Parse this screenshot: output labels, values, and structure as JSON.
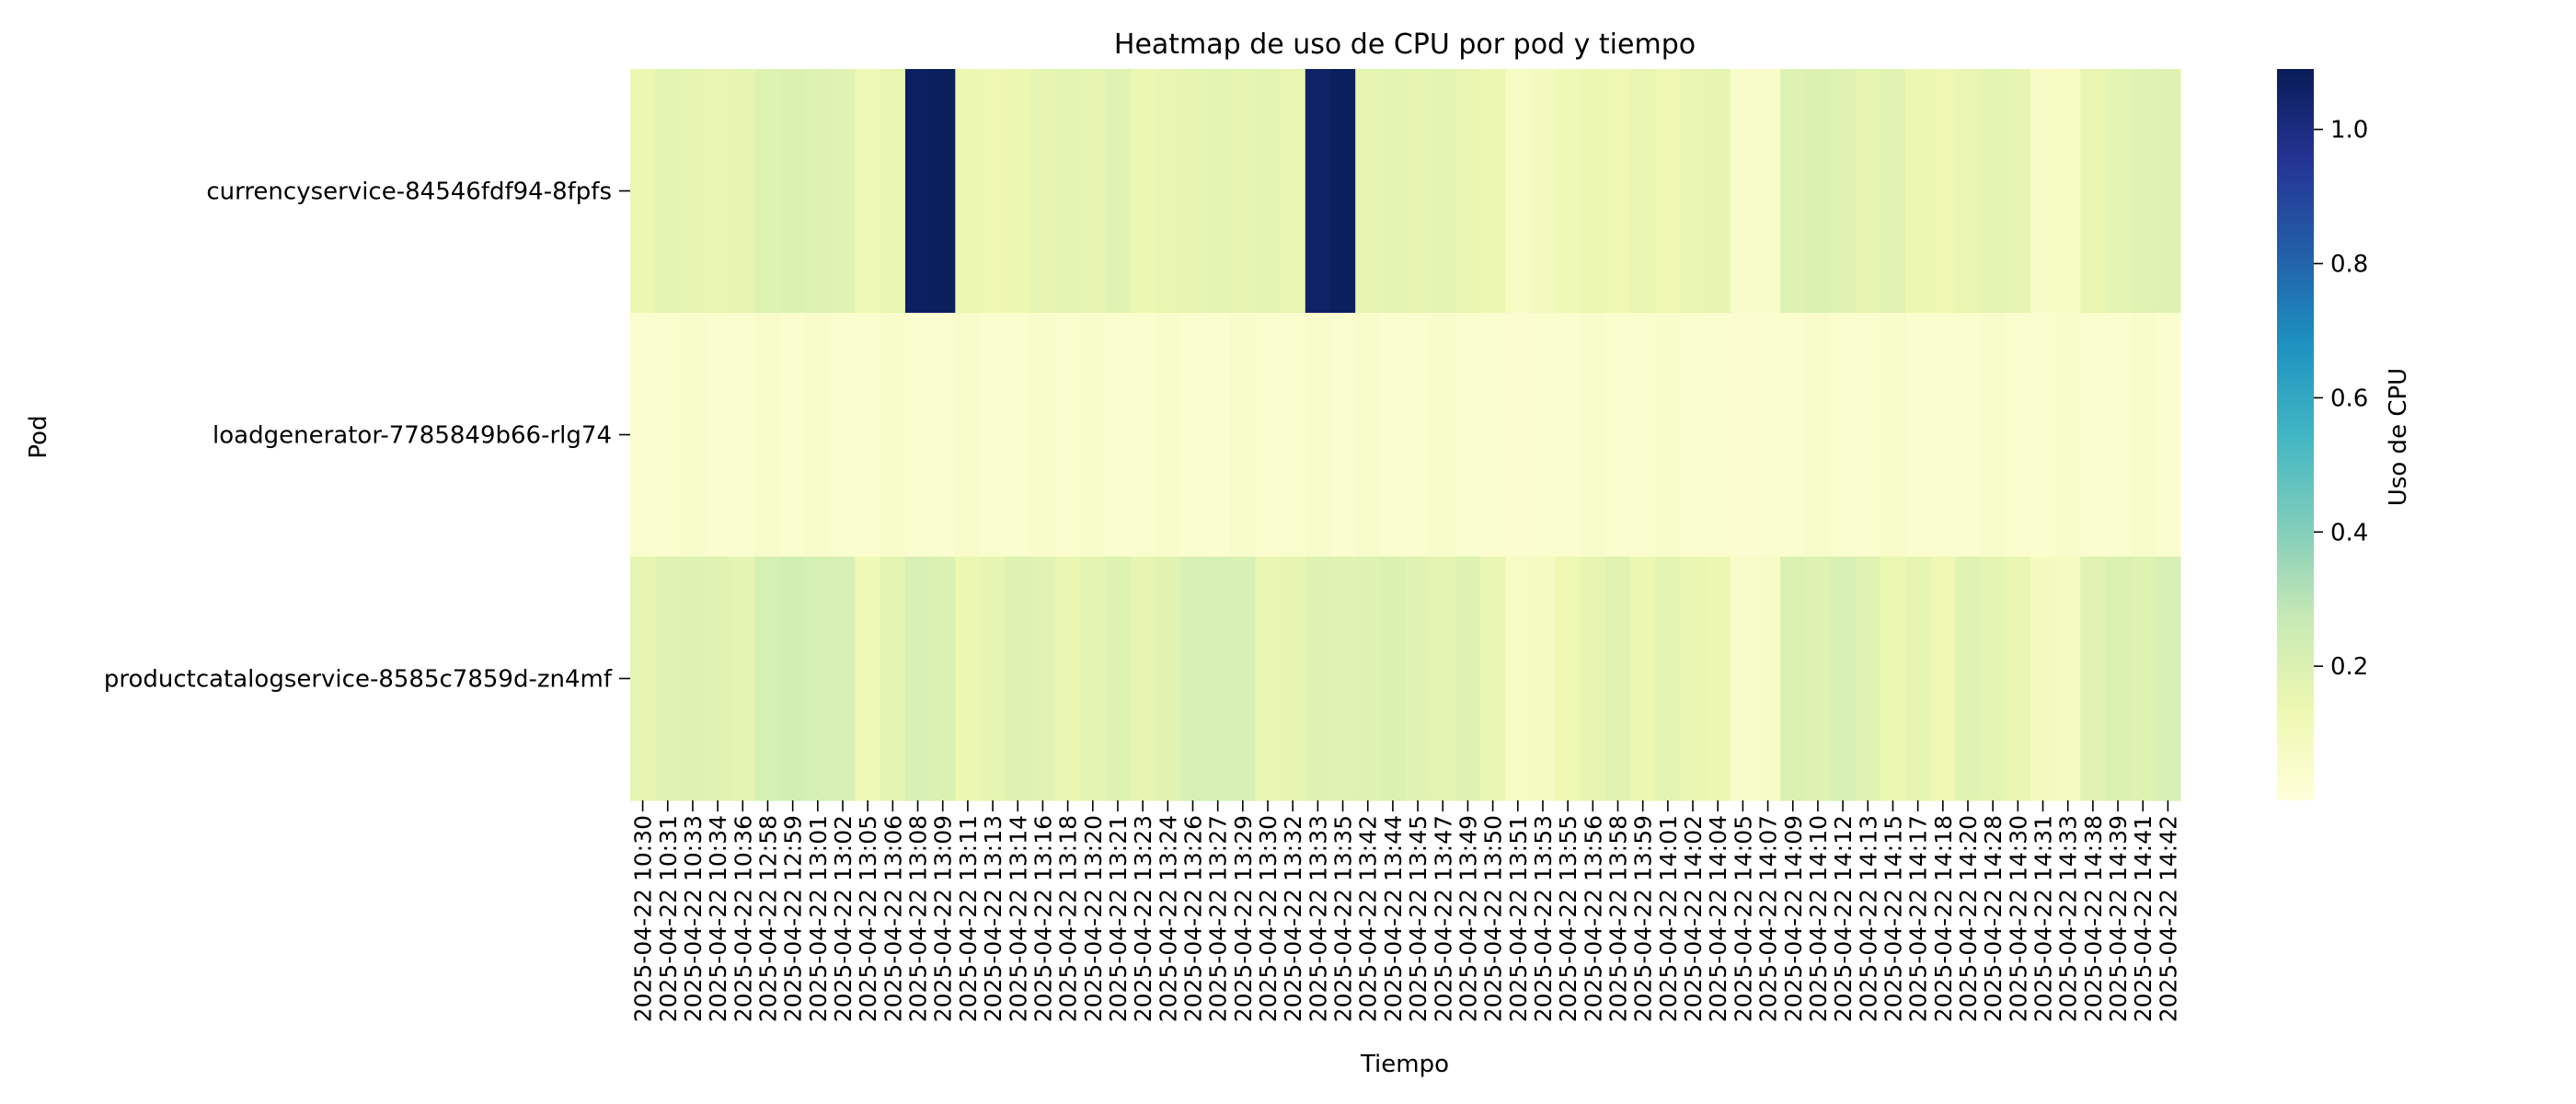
{
  "chart_data": {
    "type": "heatmap",
    "title": "Heatmap de uso de CPU por pod y tiempo",
    "xlabel": "Tiempo",
    "ylabel": "Pod",
    "colorbar_label": "Uso de CPU",
    "colormap": "YlGnBu",
    "value_range": [
      0.0,
      1.09
    ],
    "colorbar_ticks": [
      "0.2",
      "0.4",
      "0.6",
      "0.8",
      "1.0"
    ],
    "colors": {
      "low": "#ffffd9",
      "mid": "#7fcdbb",
      "high": "#081d58"
    },
    "pods": [
      "currencyservice-84546fdf94-8fpfs",
      "loadgenerator-7785849b66-rlg74",
      "productcatalogservice-8585c7859d-zn4mf"
    ],
    "x_tick_labels": [
      "2025-04-22 10:30",
      "2025-04-22 10:31",
      "2025-04-22 10:33",
      "2025-04-22 10:34",
      "2025-04-22 10:36",
      "2025-04-22 12:58",
      "2025-04-22 12:59",
      "2025-04-22 13:01",
      "2025-04-22 13:02",
      "2025-04-22 13:05",
      "2025-04-22 13:06",
      "2025-04-22 13:08",
      "2025-04-22 13:09",
      "2025-04-22 13:11",
      "2025-04-22 13:13",
      "2025-04-22 13:14",
      "2025-04-22 13:16",
      "2025-04-22 13:18",
      "2025-04-22 13:20",
      "2025-04-22 13:21",
      "2025-04-22 13:23",
      "2025-04-22 13:24",
      "2025-04-22 13:26",
      "2025-04-22 13:27",
      "2025-04-22 13:29",
      "2025-04-22 13:30",
      "2025-04-22 13:32",
      "2025-04-22 13:33",
      "2025-04-22 13:35",
      "2025-04-22 13:42",
      "2025-04-22 13:44",
      "2025-04-22 13:45",
      "2025-04-22 13:47",
      "2025-04-22 13:49",
      "2025-04-22 13:50",
      "2025-04-22 13:51",
      "2025-04-22 13:53",
      "2025-04-22 13:55",
      "2025-04-22 13:56",
      "2025-04-22 13:58",
      "2025-04-22 13:59",
      "2025-04-22 14:01",
      "2025-04-22 14:02",
      "2025-04-22 14:04",
      "2025-04-22 14:05",
      "2025-04-22 14:07",
      "2025-04-22 14:09",
      "2025-04-22 14:10",
      "2025-04-22 14:12",
      "2025-04-22 14:13",
      "2025-04-22 14:15",
      "2025-04-22 14:17",
      "2025-04-22 14:18",
      "2025-04-22 14:20",
      "2025-04-22 14:28",
      "2025-04-22 14:30",
      "2025-04-22 14:31",
      "2025-04-22 14:33",
      "2025-04-22 14:38",
      "2025-04-22 14:39",
      "2025-04-22 14:41",
      "2025-04-22 14:42"
    ],
    "values": [
      [
        0.14,
        0.17,
        0.16,
        0.15,
        0.16,
        0.19,
        0.2,
        0.19,
        0.18,
        0.12,
        0.15,
        1.07,
        1.08,
        0.14,
        0.13,
        0.14,
        0.16,
        0.17,
        0.16,
        0.18,
        0.14,
        0.15,
        0.16,
        0.17,
        0.16,
        0.17,
        0.15,
        1.06,
        1.08,
        0.16,
        0.17,
        0.16,
        0.17,
        0.15,
        0.14,
        0.07,
        0.09,
        0.12,
        0.14,
        0.13,
        0.15,
        0.13,
        0.15,
        0.16,
        0.05,
        0.05,
        0.19,
        0.2,
        0.19,
        0.16,
        0.18,
        0.14,
        0.13,
        0.15,
        0.17,
        0.16,
        0.06,
        0.07,
        0.15,
        0.17,
        0.18,
        0.19
      ],
      [
        0.04,
        0.04,
        0.05,
        0.04,
        0.04,
        0.05,
        0.04,
        0.05,
        0.04,
        0.04,
        0.05,
        0.04,
        0.04,
        0.05,
        0.04,
        0.04,
        0.05,
        0.04,
        0.05,
        0.04,
        0.04,
        0.05,
        0.04,
        0.04,
        0.05,
        0.04,
        0.04,
        0.05,
        0.04,
        0.05,
        0.04,
        0.04,
        0.05,
        0.04,
        0.04,
        0.03,
        0.04,
        0.04,
        0.05,
        0.04,
        0.04,
        0.05,
        0.04,
        0.04,
        0.03,
        0.04,
        0.04,
        0.05,
        0.04,
        0.04,
        0.05,
        0.04,
        0.04,
        0.04,
        0.05,
        0.04,
        0.04,
        0.05,
        0.04,
        0.04,
        0.05,
        0.04
      ],
      [
        0.16,
        0.18,
        0.19,
        0.18,
        0.17,
        0.22,
        0.23,
        0.22,
        0.21,
        0.12,
        0.17,
        0.21,
        0.2,
        0.14,
        0.16,
        0.19,
        0.18,
        0.15,
        0.17,
        0.19,
        0.16,
        0.18,
        0.21,
        0.22,
        0.21,
        0.15,
        0.16,
        0.19,
        0.18,
        0.19,
        0.2,
        0.18,
        0.17,
        0.19,
        0.15,
        0.07,
        0.08,
        0.13,
        0.16,
        0.18,
        0.14,
        0.17,
        0.15,
        0.14,
        0.05,
        0.06,
        0.2,
        0.19,
        0.21,
        0.18,
        0.14,
        0.16,
        0.13,
        0.18,
        0.17,
        0.15,
        0.09,
        0.08,
        0.18,
        0.2,
        0.19,
        0.21
      ]
    ]
  }
}
